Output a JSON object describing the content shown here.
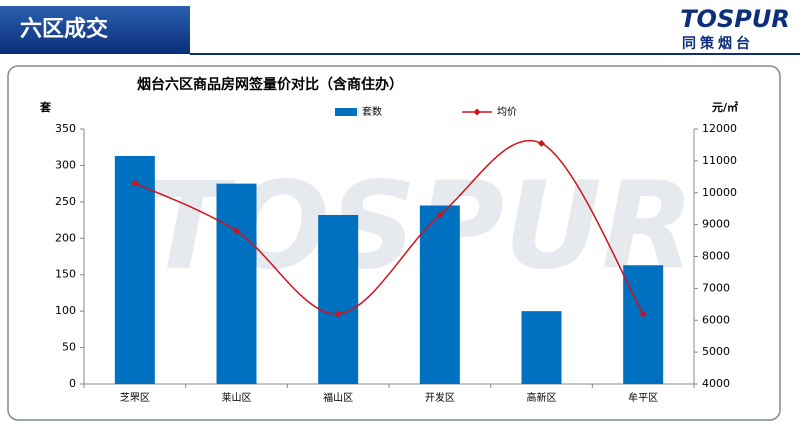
{
  "header": {
    "title": "六区成交"
  },
  "logo": {
    "name": "TOSPUR",
    "subtitle": "同策烟台"
  },
  "chart_data": {
    "type": "bar",
    "title": "烟台六区商品房网签量价对比（含商住办）",
    "y_label": "套",
    "y2_label": "元/㎡",
    "categories": [
      "芝罘区",
      "莱山区",
      "福山区",
      "开发区",
      "高新区",
      "牟平区"
    ],
    "series": [
      {
        "name": "套数",
        "color": "#0070c0",
        "values": [
          313,
          275,
          232,
          245,
          100,
          163
        ]
      },
      {
        "name": "均价",
        "type": "line",
        "axis": "y2",
        "color": "#d0121b",
        "values": [
          10300,
          8800,
          6200,
          9300,
          11550,
          6200
        ]
      }
    ],
    "ylim": [
      0,
      350
    ],
    "yticks": [
      0,
      50,
      100,
      150,
      200,
      250,
      300,
      350
    ],
    "y2lim": [
      4000,
      12000
    ],
    "y2ticks": [
      4000,
      5000,
      6000,
      7000,
      8000,
      9000,
      10000,
      11000,
      12000
    ],
    "legend": "top"
  }
}
